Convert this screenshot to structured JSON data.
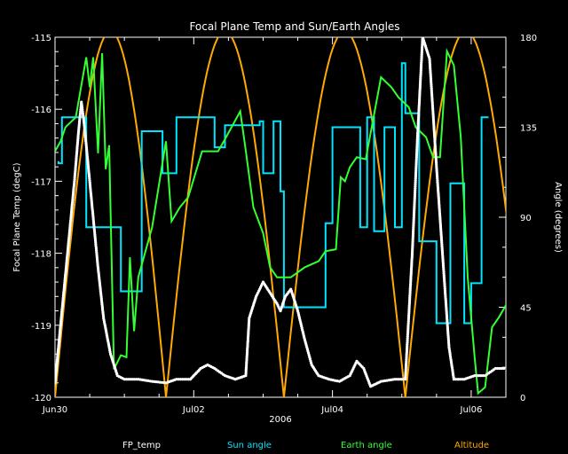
{
  "chart_data": {
    "type": "line",
    "title": "Focal Plane Temp and Sun/Earth Angles",
    "xlabel": "2006",
    "ylabel_left": "Focal Plane Temp (degC)",
    "ylabel_right": "Angle (degrees)",
    "x_ticks": [
      "Jun30",
      "Jul02",
      "Jul04",
      "Jul06"
    ],
    "x_range_days": [
      0,
      6.5
    ],
    "ylim_left": [
      -120,
      -115
    ],
    "ylim_right": [
      0,
      180
    ],
    "left_ticks": [
      "-120",
      "-119",
      "-118",
      "-117",
      "-116",
      "-115"
    ],
    "right_ticks": [
      "0",
      "45",
      "90",
      "135",
      "180"
    ],
    "colors": {
      "fp_temp": "#ffffff",
      "sun_angle": "#00e5ff",
      "earth_angle": "#33ff33",
      "altitude": "#ffaa00",
      "axes": "#ffffff"
    },
    "legend": [
      "FP_temp",
      "Sun angle",
      "Earth angle",
      "Altitude"
    ],
    "series": [
      {
        "name": "FP_temp",
        "style": "markers",
        "points": [
          [
            0.0,
            -119.8
          ],
          [
            0.08,
            -119.0
          ],
          [
            0.18,
            -118.0
          ],
          [
            0.28,
            -117.0
          ],
          [
            0.34,
            -116.3
          ],
          [
            0.38,
            -115.9
          ],
          [
            0.42,
            -116.2
          ],
          [
            0.48,
            -116.8
          ],
          [
            0.55,
            -117.5
          ],
          [
            0.62,
            -118.2
          ],
          [
            0.7,
            -118.9
          ],
          [
            0.8,
            -119.4
          ],
          [
            0.9,
            -119.7
          ],
          [
            1.0,
            -119.75
          ],
          [
            1.2,
            -119.75
          ],
          [
            1.4,
            -119.78
          ],
          [
            1.6,
            -119.8
          ],
          [
            1.75,
            -119.75
          ],
          [
            1.95,
            -119.75
          ],
          [
            2.1,
            -119.6
          ],
          [
            2.2,
            -119.55
          ],
          [
            2.3,
            -119.6
          ],
          [
            2.45,
            -119.7
          ],
          [
            2.6,
            -119.75
          ],
          [
            2.75,
            -119.7
          ],
          [
            2.8,
            -118.9
          ],
          [
            2.9,
            -118.6
          ],
          [
            3.0,
            -118.4
          ],
          [
            3.1,
            -118.55
          ],
          [
            3.2,
            -118.7
          ],
          [
            3.25,
            -118.8
          ],
          [
            3.32,
            -118.6
          ],
          [
            3.4,
            -118.5
          ],
          [
            3.5,
            -118.8
          ],
          [
            3.6,
            -119.2
          ],
          [
            3.7,
            -119.55
          ],
          [
            3.8,
            -119.7
          ],
          [
            3.95,
            -119.75
          ],
          [
            4.1,
            -119.78
          ],
          [
            4.25,
            -119.7
          ],
          [
            4.35,
            -119.5
          ],
          [
            4.45,
            -119.6
          ],
          [
            4.55,
            -119.85
          ],
          [
            4.7,
            -119.78
          ],
          [
            4.9,
            -119.75
          ],
          [
            5.05,
            -119.75
          ],
          [
            5.15,
            -118.0
          ],
          [
            5.22,
            -116.5
          ],
          [
            5.3,
            -115.0
          ],
          [
            5.4,
            -115.3
          ],
          [
            5.5,
            -116.8
          ],
          [
            5.6,
            -118.2
          ],
          [
            5.68,
            -119.3
          ],
          [
            5.75,
            -119.75
          ],
          [
            5.9,
            -119.75
          ],
          [
            6.05,
            -119.7
          ],
          [
            6.2,
            -119.7
          ],
          [
            6.35,
            -119.6
          ],
          [
            6.5,
            -119.6
          ]
        ]
      },
      {
        "name": "Sun angle",
        "style": "line",
        "points": [
          [
            0.05,
            118
          ],
          [
            0.05,
            117
          ],
          [
            0.1,
            117
          ],
          [
            0.1,
            140
          ],
          [
            0.45,
            140
          ],
          [
            0.45,
            85
          ],
          [
            0.95,
            85
          ],
          [
            0.95,
            53
          ],
          [
            1.25,
            53
          ],
          [
            1.25,
            133
          ],
          [
            1.55,
            133
          ],
          [
            1.55,
            112
          ],
          [
            1.75,
            112
          ],
          [
            1.75,
            140
          ],
          [
            1.78,
            140
          ],
          [
            2.3,
            140
          ],
          [
            2.3,
            125
          ],
          [
            2.45,
            125
          ],
          [
            2.45,
            136
          ],
          [
            2.95,
            136
          ],
          [
            2.95,
            138
          ],
          [
            3.0,
            138
          ],
          [
            3.0,
            112
          ],
          [
            3.15,
            112
          ],
          [
            3.15,
            138
          ],
          [
            3.25,
            138
          ],
          [
            3.25,
            103
          ],
          [
            3.3,
            103
          ],
          [
            3.3,
            45
          ],
          [
            3.9,
            45
          ],
          [
            3.9,
            87
          ],
          [
            4.0,
            87
          ],
          [
            4.0,
            135
          ],
          [
            4.4,
            135
          ],
          [
            4.4,
            85
          ],
          [
            4.5,
            85
          ],
          [
            4.5,
            140
          ],
          [
            4.6,
            140
          ],
          [
            4.6,
            83
          ],
          [
            4.75,
            83
          ],
          [
            4.75,
            135
          ],
          [
            4.9,
            135
          ],
          [
            4.9,
            85
          ],
          [
            5.0,
            85
          ],
          [
            5.0,
            167
          ],
          [
            5.05,
            167
          ],
          [
            5.05,
            142
          ],
          [
            5.25,
            142
          ],
          [
            5.25,
            78
          ],
          [
            5.5,
            78
          ],
          [
            5.5,
            37
          ],
          [
            5.7,
            37
          ],
          [
            5.7,
            107
          ],
          [
            5.9,
            107
          ],
          [
            5.9,
            37
          ],
          [
            6.0,
            37
          ],
          [
            6.0,
            57
          ],
          [
            6.15,
            57
          ],
          [
            6.15,
            140
          ],
          [
            6.25,
            140
          ]
        ]
      },
      {
        "name": "Earth angle",
        "style": "line",
        "points": [
          [
            0.0,
            123
          ],
          [
            0.08,
            128
          ],
          [
            0.15,
            135
          ],
          [
            0.3,
            140
          ],
          [
            0.45,
            170
          ],
          [
            0.5,
            155
          ],
          [
            0.55,
            170
          ],
          [
            0.62,
            122
          ],
          [
            0.68,
            172
          ],
          [
            0.73,
            114
          ],
          [
            0.78,
            126
          ],
          [
            0.85,
            14
          ],
          [
            0.95,
            21
          ],
          [
            1.03,
            20
          ],
          [
            1.08,
            70
          ],
          [
            1.14,
            33
          ],
          [
            1.2,
            60
          ],
          [
            1.4,
            85
          ],
          [
            1.6,
            128
          ],
          [
            1.68,
            88
          ],
          [
            1.8,
            95
          ],
          [
            1.92,
            100
          ],
          [
            2.12,
            123
          ],
          [
            2.35,
            123
          ],
          [
            2.45,
            129
          ],
          [
            2.67,
            143
          ],
          [
            2.74,
            126
          ],
          [
            2.86,
            95
          ],
          [
            3.0,
            82
          ],
          [
            3.1,
            65
          ],
          [
            3.2,
            60
          ],
          [
            3.4,
            60
          ],
          [
            3.6,
            65
          ],
          [
            3.8,
            68
          ],
          [
            3.9,
            73
          ],
          [
            4.05,
            74
          ],
          [
            4.12,
            110
          ],
          [
            4.18,
            108
          ],
          [
            4.25,
            115
          ],
          [
            4.35,
            120
          ],
          [
            4.48,
            119
          ],
          [
            4.7,
            160
          ],
          [
            4.85,
            155
          ],
          [
            4.95,
            150
          ],
          [
            5.1,
            145
          ],
          [
            5.2,
            135
          ],
          [
            5.35,
            130
          ],
          [
            5.45,
            120
          ],
          [
            5.55,
            120
          ],
          [
            5.65,
            173
          ],
          [
            5.75,
            166
          ],
          [
            5.85,
            130
          ],
          [
            5.95,
            60
          ],
          [
            6.05,
            20
          ],
          [
            6.1,
            2
          ],
          [
            6.2,
            5
          ],
          [
            6.3,
            35
          ],
          [
            6.4,
            40
          ],
          [
            6.5,
            46
          ]
        ]
      },
      {
        "name": "Altitude",
        "style": "line",
        "periods": [
          [
            0.0,
            1.6
          ],
          [
            1.6,
            3.3
          ],
          [
            3.3,
            5.05
          ],
          [
            5.05,
            6.8
          ]
        ],
        "min": 0,
        "max": 183
      }
    ]
  }
}
